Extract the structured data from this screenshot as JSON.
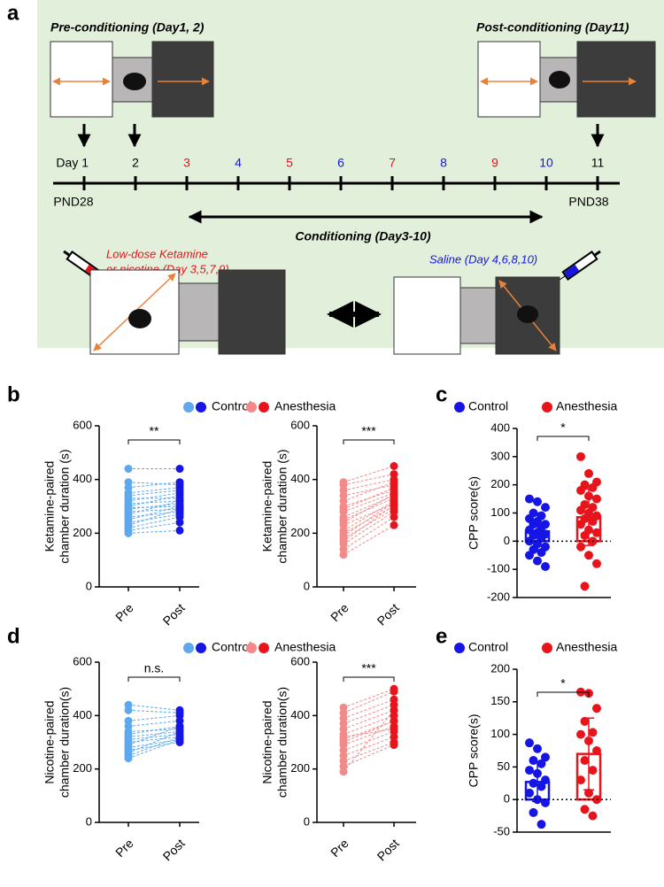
{
  "panel_labels": [
    "a",
    "b",
    "c",
    "d",
    "e"
  ],
  "diagram": {
    "pre_title": "Pre-conditioning (Day1, 2)",
    "post_title": "Post-conditioning (Day11)",
    "timeline": {
      "days": [
        {
          "label": "Day 1",
          "color": "#000000"
        },
        {
          "label": "2",
          "color": "#000000"
        },
        {
          "label": "3",
          "color": "#e8141c"
        },
        {
          "label": "4",
          "color": "#1515e6"
        },
        {
          "label": "5",
          "color": "#e8141c"
        },
        {
          "label": "6",
          "color": "#1515e6"
        },
        {
          "label": "7",
          "color": "#e8141c"
        },
        {
          "label": "8",
          "color": "#1515e6"
        },
        {
          "label": "9",
          "color": "#e8141c"
        },
        {
          "label": "10",
          "color": "#1515e6"
        },
        {
          "label": "11",
          "color": "#000000"
        }
      ],
      "start_label": "PND28",
      "end_label": "PND38"
    },
    "conditioning_label": "Conditioning (Day3-10)",
    "drug_label": [
      "Low-dose Ketamine",
      "or nicotine (Day 3,5,7,9)"
    ],
    "saline_label": "Saline (Day 4,6,8,10)"
  },
  "chart_data": [
    {
      "type": "paired",
      "legend": "Control",
      "colors": [
        "#5ea8f0",
        "#1515e6"
      ],
      "ylabel": [
        "Ketamine-paired",
        "chamber duration (s)"
      ],
      "categories": [
        "Pre",
        "Post"
      ],
      "pre": [
        440,
        390,
        370,
        350,
        340,
        330,
        320,
        310,
        300,
        295,
        290,
        280,
        270,
        260,
        250,
        240,
        230,
        220,
        210,
        200
      ],
      "post": [
        440,
        380,
        390,
        370,
        360,
        330,
        350,
        320,
        340,
        300,
        310,
        290,
        320,
        280,
        300,
        270,
        290,
        260,
        240,
        210
      ],
      "significance": "**",
      "ylim": [
        0,
        600
      ],
      "yticks": [
        0,
        200,
        400,
        600
      ]
    },
    {
      "type": "paired",
      "legend": "Anesthesia",
      "colors": [
        "#f28a8a",
        "#e8141c"
      ],
      "ylabel": [
        "Ketamine-paired",
        "chamber duration (s)"
      ],
      "categories": [
        "Pre",
        "Post"
      ],
      "pre": [
        390,
        380,
        360,
        340,
        320,
        300,
        280,
        260,
        250,
        230,
        210,
        200,
        180,
        160,
        140,
        120,
        290,
        240,
        190,
        170
      ],
      "post": [
        450,
        420,
        400,
        380,
        390,
        360,
        350,
        340,
        330,
        310,
        320,
        300,
        290,
        280,
        260,
        230,
        370,
        345,
        315,
        305
      ],
      "significance": "***",
      "ylim": [
        0,
        600
      ],
      "yticks": [
        0,
        200,
        400,
        600
      ]
    },
    {
      "type": "bar_scatter",
      "categories": [
        "Control",
        "Anesthesia"
      ],
      "colors": [
        "#1515e6",
        "#e8141c"
      ],
      "ylabel": "CPP score(s)",
      "means": [
        35,
        85
      ],
      "errors": [
        65,
        100
      ],
      "points": [
        [
          150,
          140,
          120,
          100,
          90,
          80,
          70,
          60,
          60,
          50,
          40,
          30,
          25,
          20,
          10,
          0,
          -10,
          -20,
          -30,
          -40,
          -50,
          -70,
          -90
        ],
        [
          300,
          240,
          210,
          200,
          190,
          180,
          160,
          150,
          130,
          120,
          110,
          100,
          90,
          80,
          70,
          60,
          40,
          30,
          20,
          0,
          -20,
          -50,
          -80,
          -160
        ]
      ],
      "significance": "*",
      "ylim": [
        -200,
        400
      ],
      "yticks": [
        -200,
        -100,
        0,
        100,
        200,
        300,
        400
      ]
    },
    {
      "type": "paired",
      "legend": "Control",
      "colors": [
        "#5ea8f0",
        "#1515e6"
      ],
      "ylabel": [
        "Nicotine-paired",
        "chamber duration(s)"
      ],
      "categories": [
        "Pre",
        "Post"
      ],
      "pre": [
        440,
        420,
        380,
        360,
        340,
        330,
        320,
        310,
        300,
        290,
        280,
        270,
        260,
        250,
        240
      ],
      "post": [
        420,
        410,
        400,
        380,
        350,
        360,
        340,
        330,
        320,
        360,
        310,
        300,
        340,
        320,
        310
      ],
      "significance": "n.s.",
      "ylim": [
        0,
        600
      ],
      "yticks": [
        0,
        200,
        400,
        600
      ]
    },
    {
      "type": "paired",
      "legend": "Anesthesia",
      "colors": [
        "#f28a8a",
        "#e8141c"
      ],
      "ylabel": [
        "Nicotine-paired",
        "chamber duration(s)"
      ],
      "categories": [
        "Pre",
        "Post"
      ],
      "pre": [
        430,
        410,
        390,
        370,
        350,
        330,
        310,
        290,
        270,
        250,
        230,
        210,
        190,
        300,
        320
      ],
      "post": [
        500,
        490,
        460,
        440,
        420,
        400,
        380,
        360,
        340,
        320,
        300,
        290,
        420,
        380,
        350
      ],
      "significance": "***",
      "ylim": [
        0,
        600
      ],
      "yticks": [
        0,
        200,
        400,
        600
      ]
    },
    {
      "type": "bar_scatter",
      "categories": [
        "Control",
        "Anesthesia"
      ],
      "colors": [
        "#1515e6",
        "#e8141c"
      ],
      "ylabel": "CPP score(s)",
      "means": [
        27,
        70
      ],
      "errors": [
        30,
        55
      ],
      "points": [
        [
          87,
          78,
          65,
          60,
          55,
          45,
          40,
          30,
          25,
          20,
          10,
          0,
          -5,
          -20,
          -38
        ],
        [
          165,
          163,
          140,
          120,
          103,
          100,
          90,
          75,
          60,
          45,
          30,
          10,
          0,
          -15,
          -25
        ]
      ],
      "significance": "*",
      "ylim": [
        -50,
        200
      ],
      "yticks": [
        -50,
        0,
        50,
        100,
        150,
        200
      ]
    }
  ]
}
